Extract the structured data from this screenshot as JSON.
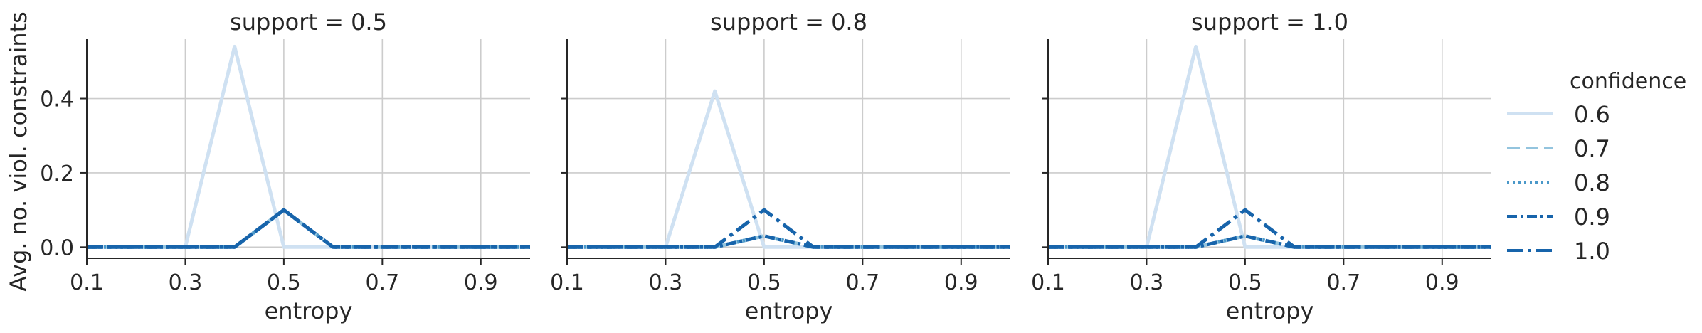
{
  "chart_data": [
    {
      "type": "line",
      "title": "support = 0.5",
      "xlabel": "entropy",
      "ylabel": "Avg. no. viol. constraints",
      "xlim": [
        0.1,
        1.0
      ],
      "ylim": [
        -0.03,
        0.56
      ],
      "xticks": [
        "0.1",
        "0.3",
        "0.5",
        "0.7",
        "0.9"
      ],
      "yticks": [
        "0.0",
        "0.2",
        "0.4"
      ],
      "grid": true,
      "x": [
        0.1,
        0.2,
        0.3,
        0.4,
        0.5,
        0.6,
        0.7,
        0.8,
        0.9,
        1.0
      ],
      "series": [
        {
          "name": "0.6",
          "values": [
            0,
            0,
            0,
            0.54,
            0,
            0,
            0,
            0,
            0,
            0
          ]
        },
        {
          "name": "0.7",
          "values": [
            0,
            0,
            0,
            0,
            0.1,
            0,
            0,
            0,
            0,
            0
          ]
        },
        {
          "name": "0.8",
          "values": [
            0,
            0,
            0,
            0,
            0.1,
            0,
            0,
            0,
            0,
            0
          ]
        },
        {
          "name": "0.9",
          "values": [
            0,
            0,
            0,
            0,
            0.1,
            0,
            0,
            0,
            0,
            0
          ]
        },
        {
          "name": "1.0",
          "values": [
            0,
            0,
            0,
            0,
            0.1,
            0,
            0,
            0,
            0,
            0
          ]
        }
      ]
    },
    {
      "type": "line",
      "title": "support = 0.8",
      "xlabel": "entropy",
      "ylabel": "",
      "xlim": [
        0.1,
        1.0
      ],
      "ylim": [
        -0.03,
        0.56
      ],
      "xticks": [
        "0.1",
        "0.3",
        "0.5",
        "0.7",
        "0.9"
      ],
      "yticks": [],
      "grid": true,
      "x": [
        0.1,
        0.2,
        0.3,
        0.4,
        0.5,
        0.6,
        0.7,
        0.8,
        0.9,
        1.0
      ],
      "series": [
        {
          "name": "0.6",
          "values": [
            0,
            0,
            0,
            0.42,
            0,
            0,
            0,
            0,
            0,
            0
          ]
        },
        {
          "name": "0.7",
          "values": [
            0,
            0,
            0,
            0,
            0.03,
            0,
            0,
            0,
            0,
            0
          ]
        },
        {
          "name": "0.8",
          "values": [
            0,
            0,
            0,
            0,
            0.03,
            0,
            0,
            0,
            0,
            0
          ]
        },
        {
          "name": "0.9",
          "values": [
            0,
            0,
            0,
            0,
            0.03,
            0,
            0,
            0,
            0,
            0
          ]
        },
        {
          "name": "1.0",
          "values": [
            0,
            0,
            0,
            0,
            0.1,
            0,
            0,
            0,
            0,
            0
          ]
        }
      ]
    },
    {
      "type": "line",
      "title": "support = 1.0",
      "xlabel": "entropy",
      "ylabel": "",
      "xlim": [
        0.1,
        1.0
      ],
      "ylim": [
        -0.03,
        0.56
      ],
      "xticks": [
        "0.1",
        "0.3",
        "0.5",
        "0.7",
        "0.9"
      ],
      "yticks": [],
      "grid": true,
      "x": [
        0.1,
        0.2,
        0.3,
        0.4,
        0.5,
        0.6,
        0.7,
        0.8,
        0.9,
        1.0
      ],
      "series": [
        {
          "name": "0.6",
          "values": [
            0,
            0,
            0,
            0.54,
            0,
            0,
            0,
            0,
            0,
            0
          ]
        },
        {
          "name": "0.7",
          "values": [
            0,
            0,
            0,
            0,
            0.03,
            0,
            0,
            0,
            0,
            0
          ]
        },
        {
          "name": "0.8",
          "values": [
            0,
            0,
            0,
            0,
            0.03,
            0,
            0,
            0,
            0,
            0
          ]
        },
        {
          "name": "0.9",
          "values": [
            0,
            0,
            0,
            0,
            0.03,
            0,
            0,
            0,
            0,
            0
          ]
        },
        {
          "name": "1.0",
          "values": [
            0,
            0,
            0,
            0,
            0.1,
            0,
            0,
            0,
            0,
            0
          ]
        }
      ]
    }
  ],
  "legend": {
    "title": "confidence",
    "placement": "right",
    "entries": [
      {
        "label": "0.6",
        "color": "#cfe1f2",
        "style": "solid"
      },
      {
        "label": "0.7",
        "color": "#93c4de",
        "style": "dashed"
      },
      {
        "label": "0.8",
        "color": "#4a98c9",
        "style": "dotted"
      },
      {
        "label": "0.9",
        "color": "#1764ab",
        "style": "dashdot-dense"
      },
      {
        "label": "1.0",
        "color": "#1764ab",
        "style": "dashdot"
      }
    ]
  },
  "shared_yticks": [
    "0.0",
    "0.2",
    "0.4"
  ],
  "colors": {
    "grid": "#cccccc",
    "axis": "#262626",
    "background": "#ffffff"
  }
}
